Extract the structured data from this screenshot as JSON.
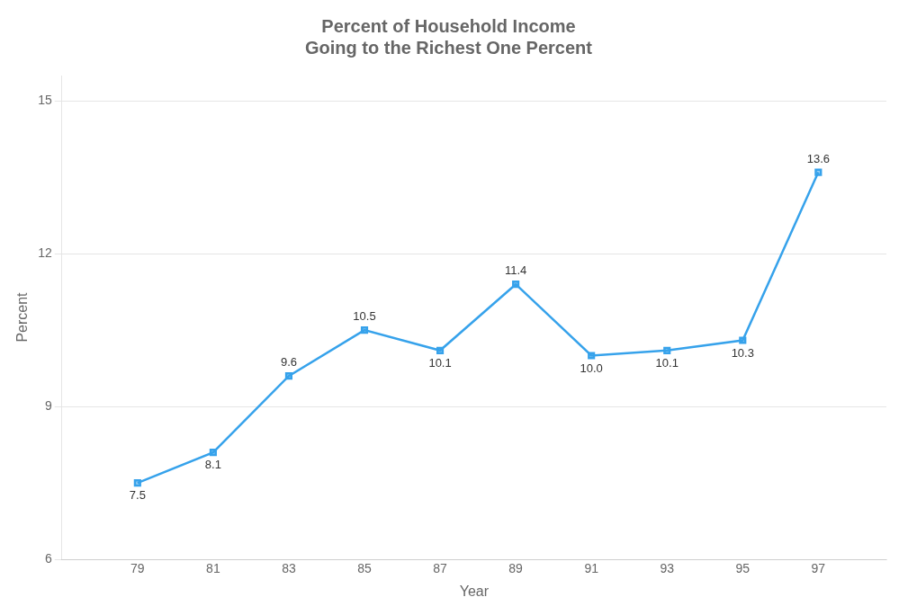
{
  "chart_data": {
    "type": "line",
    "title": "Percent of Household Income\nGoing to the Richest One Percent",
    "xlabel": "Year",
    "ylabel": "Percent",
    "x": [
      79,
      81,
      83,
      85,
      87,
      89,
      91,
      93,
      95,
      97
    ],
    "values": [
      7.5,
      8.1,
      9.6,
      10.5,
      10.1,
      11.4,
      10.0,
      10.1,
      10.3,
      13.6
    ],
    "value_labels": [
      "7.5",
      "8.1",
      "9.6",
      "10.5",
      "10.1",
      "11.4",
      "10.0",
      "10.1",
      "10.3",
      "13.6"
    ],
    "data_labels": true,
    "marker": "square",
    "xlim": [
      77.0,
      98.8
    ],
    "xticks": [
      79,
      81,
      83,
      85,
      87,
      89,
      91,
      93,
      95,
      97
    ],
    "ylim": [
      6,
      15.5
    ],
    "yticks": [
      6,
      9,
      12,
      15
    ],
    "grid": "y"
  }
}
